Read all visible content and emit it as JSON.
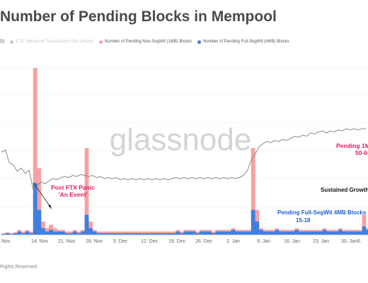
{
  "title": "Number of Pending Blocks in Mempool",
  "legend": [
    {
      "label": "D)",
      "color": "#888888",
      "faded": false,
      "dot": false
    },
    {
      "label": "ETC: Mempool Transactions Size (vByte)",
      "color": "#c8c8c8",
      "faded": true,
      "dot": true
    },
    {
      "label": "Number of Pending Non-SegWit (1MB) Blocks",
      "color": "#f7a1a1",
      "faded": false,
      "dot": true
    },
    {
      "label": "Number of Pending Full-SegWit (4MB) Blocks",
      "color": "#3f7fe0",
      "faded": false,
      "dot": true
    }
  ],
  "watermark": "glassnode",
  "footer": "Rights Reserved.",
  "colors": {
    "price": "#8a8a8a",
    "nonsegwit": "#f7a1a1",
    "segwit": "#3f7fe0",
    "annotation_pink": "#e6195b",
    "annotation_blue": "#1f5fd0"
  },
  "annotations": {
    "ftx_1": "Post FTX Panic",
    "ftx_2": "'An Event'",
    "pending_1m_1": "Pending 1M",
    "pending_1m_2": "50-6",
    "sustained": "Sustained Growth",
    "full_segwit_1": "Pending Full-SegWit 4MB Blocks",
    "full_segwit_2": "15-18"
  },
  "chart_data": {
    "type": "area",
    "x_ticks": [
      "Nov",
      "14. Nov",
      "21. Nov",
      "28. Nov",
      "5. Dec",
      "12. Dec",
      "19. Dec",
      "26. Dec",
      "2. Jan",
      "9. Jan",
      "16. Jan",
      "23. Jan",
      "30. Jan",
      "6."
    ],
    "y_range_blocks": [
      0,
      100
    ],
    "series": [
      {
        "name": "Number of Pending Non-SegWit (1MB) Blocks",
        "points": [
          [
            0,
            1
          ],
          [
            1,
            1.5
          ],
          [
            2,
            1
          ],
          [
            3,
            1.5
          ],
          [
            4,
            3
          ],
          [
            5,
            2
          ],
          [
            6,
            3
          ],
          [
            7,
            2
          ],
          [
            8,
            100
          ],
          [
            9,
            40
          ],
          [
            10,
            8
          ],
          [
            11,
            4
          ],
          [
            12,
            6
          ],
          [
            13,
            4
          ],
          [
            14,
            3
          ],
          [
            15,
            3
          ],
          [
            16,
            2
          ],
          [
            17,
            2
          ],
          [
            18,
            3
          ],
          [
            19,
            2
          ],
          [
            20,
            3
          ],
          [
            21,
            52
          ],
          [
            22,
            8
          ],
          [
            23,
            3
          ],
          [
            24,
            2
          ],
          [
            25,
            2
          ],
          [
            26,
            2
          ],
          [
            27,
            2
          ],
          [
            28,
            2
          ],
          [
            29,
            2
          ],
          [
            30,
            2
          ],
          [
            31,
            2
          ],
          [
            32,
            2
          ],
          [
            33,
            2
          ],
          [
            34,
            2
          ],
          [
            35,
            2
          ],
          [
            36,
            2
          ],
          [
            37,
            2
          ],
          [
            38,
            2
          ],
          [
            39,
            2
          ],
          [
            40,
            2
          ],
          [
            41,
            2
          ],
          [
            42,
            2
          ],
          [
            43,
            2
          ],
          [
            44,
            3
          ],
          [
            45,
            2
          ],
          [
            46,
            3
          ],
          [
            47,
            3
          ],
          [
            48,
            3
          ],
          [
            49,
            2
          ],
          [
            50,
            3
          ],
          [
            51,
            3
          ],
          [
            52,
            3
          ],
          [
            53,
            2
          ],
          [
            54,
            3
          ],
          [
            55,
            3
          ],
          [
            56,
            3
          ],
          [
            57,
            3
          ],
          [
            58,
            4
          ],
          [
            59,
            3
          ],
          [
            60,
            3
          ],
          [
            61,
            3
          ],
          [
            62,
            3
          ],
          [
            63,
            52
          ],
          [
            64,
            15
          ],
          [
            65,
            4
          ],
          [
            66,
            3
          ],
          [
            67,
            3
          ],
          [
            68,
            3
          ],
          [
            69,
            4
          ],
          [
            70,
            3
          ],
          [
            71,
            3
          ],
          [
            72,
            3
          ],
          [
            73,
            3
          ],
          [
            74,
            4
          ],
          [
            75,
            3
          ],
          [
            76,
            3
          ],
          [
            77,
            3
          ],
          [
            78,
            3
          ],
          [
            79,
            3
          ],
          [
            80,
            3
          ],
          [
            81,
            4
          ],
          [
            82,
            3
          ],
          [
            83,
            3
          ],
          [
            84,
            3
          ],
          [
            85,
            4
          ],
          [
            86,
            3
          ],
          [
            87,
            3
          ],
          [
            88,
            3
          ],
          [
            89,
            3
          ],
          [
            90,
            3
          ],
          [
            91,
            12
          ],
          [
            92,
            4
          ]
        ]
      },
      {
        "name": "Number of Pending Full-SegWit (4MB) Blocks",
        "points": [
          [
            0,
            0.5
          ],
          [
            1,
            1
          ],
          [
            2,
            0.5
          ],
          [
            3,
            1
          ],
          [
            4,
            2
          ],
          [
            5,
            1
          ],
          [
            6,
            2
          ],
          [
            7,
            1
          ],
          [
            8,
            31
          ],
          [
            9,
            15
          ],
          [
            10,
            4
          ],
          [
            11,
            2
          ],
          [
            12,
            3
          ],
          [
            13,
            2
          ],
          [
            14,
            2
          ],
          [
            15,
            2
          ],
          [
            16,
            1
          ],
          [
            17,
            1
          ],
          [
            18,
            2
          ],
          [
            19,
            1
          ],
          [
            20,
            2
          ],
          [
            21,
            12
          ],
          [
            22,
            4
          ],
          [
            23,
            2
          ],
          [
            24,
            1
          ],
          [
            25,
            1
          ],
          [
            26,
            1
          ],
          [
            27,
            1
          ],
          [
            28,
            1
          ],
          [
            29,
            1
          ],
          [
            30,
            1
          ],
          [
            31,
            1
          ],
          [
            32,
            1
          ],
          [
            33,
            1
          ],
          [
            34,
            1
          ],
          [
            35,
            1
          ],
          [
            36,
            1
          ],
          [
            37,
            1
          ],
          [
            38,
            1
          ],
          [
            39,
            1
          ],
          [
            40,
            1
          ],
          [
            41,
            1
          ],
          [
            42,
            1
          ],
          [
            43,
            1
          ],
          [
            44,
            2
          ],
          [
            45,
            1
          ],
          [
            46,
            2
          ],
          [
            47,
            2
          ],
          [
            48,
            2
          ],
          [
            49,
            1
          ],
          [
            50,
            2
          ],
          [
            51,
            2
          ],
          [
            52,
            2
          ],
          [
            53,
            1
          ],
          [
            54,
            2
          ],
          [
            55,
            2
          ],
          [
            56,
            2
          ],
          [
            57,
            2
          ],
          [
            58,
            3
          ],
          [
            59,
            2
          ],
          [
            60,
            2
          ],
          [
            61,
            2
          ],
          [
            62,
            2
          ],
          [
            63,
            15
          ],
          [
            64,
            8
          ],
          [
            65,
            3
          ],
          [
            66,
            2
          ],
          [
            67,
            2
          ],
          [
            68,
            2
          ],
          [
            69,
            3
          ],
          [
            70,
            2
          ],
          [
            71,
            2
          ],
          [
            72,
            2
          ],
          [
            73,
            2
          ],
          [
            74,
            3
          ],
          [
            75,
            2
          ],
          [
            76,
            2
          ],
          [
            77,
            2
          ],
          [
            78,
            2
          ],
          [
            79,
            2
          ],
          [
            80,
            2
          ],
          [
            81,
            3
          ],
          [
            82,
            2
          ],
          [
            83,
            2
          ],
          [
            84,
            2
          ],
          [
            85,
            3
          ],
          [
            86,
            2
          ],
          [
            87,
            2
          ],
          [
            88,
            2
          ],
          [
            89,
            2
          ],
          [
            90,
            2
          ],
          [
            91,
            5
          ],
          [
            92,
            3
          ]
        ]
      },
      {
        "name": "ETC: Mempool Transactions Size (vByte)",
        "relative": true,
        "points": [
          [
            0,
            0.7
          ],
          [
            1,
            0.72
          ],
          [
            2,
            0.6
          ],
          [
            3,
            0.58
          ],
          [
            4,
            0.52
          ],
          [
            5,
            0.55
          ],
          [
            6,
            0.5
          ],
          [
            7,
            0.53
          ],
          [
            8,
            0.35
          ],
          [
            9,
            0.38
          ],
          [
            10,
            0.42
          ],
          [
            11,
            0.4
          ],
          [
            12,
            0.43
          ],
          [
            13,
            0.45
          ],
          [
            14,
            0.44
          ],
          [
            15,
            0.46
          ],
          [
            16,
            0.47
          ],
          [
            17,
            0.46
          ],
          [
            18,
            0.48
          ],
          [
            19,
            0.47
          ],
          [
            20,
            0.49
          ],
          [
            21,
            0.48
          ],
          [
            22,
            0.47
          ],
          [
            23,
            0.48
          ],
          [
            24,
            0.46
          ],
          [
            25,
            0.47
          ],
          [
            26,
            0.45
          ],
          [
            27,
            0.46
          ],
          [
            28,
            0.45
          ],
          [
            29,
            0.46
          ],
          [
            30,
            0.44
          ],
          [
            31,
            0.45
          ],
          [
            32,
            0.44
          ],
          [
            33,
            0.45
          ],
          [
            34,
            0.44
          ],
          [
            35,
            0.45
          ],
          [
            36,
            0.44
          ],
          [
            37,
            0.45
          ],
          [
            38,
            0.44
          ],
          [
            39,
            0.45
          ],
          [
            40,
            0.44
          ],
          [
            41,
            0.45
          ],
          [
            42,
            0.44
          ],
          [
            43,
            0.45
          ],
          [
            44,
            0.46
          ],
          [
            45,
            0.45
          ],
          [
            46,
            0.46
          ],
          [
            47,
            0.45
          ],
          [
            48,
            0.46
          ],
          [
            49,
            0.45
          ],
          [
            50,
            0.46
          ],
          [
            51,
            0.45
          ],
          [
            52,
            0.46
          ],
          [
            53,
            0.45
          ],
          [
            54,
            0.46
          ],
          [
            55,
            0.45
          ],
          [
            56,
            0.46
          ],
          [
            57,
            0.45
          ],
          [
            58,
            0.46
          ],
          [
            59,
            0.45
          ],
          [
            60,
            0.46
          ],
          [
            61,
            0.48
          ],
          [
            62,
            0.52
          ],
          [
            63,
            0.62
          ],
          [
            64,
            0.68
          ],
          [
            65,
            0.75
          ],
          [
            66,
            0.78
          ],
          [
            67,
            0.8
          ],
          [
            68,
            0.79
          ],
          [
            69,
            0.81
          ],
          [
            70,
            0.8
          ],
          [
            71,
            0.82
          ],
          [
            72,
            0.81
          ],
          [
            73,
            0.83
          ],
          [
            74,
            0.85
          ],
          [
            75,
            0.84
          ],
          [
            76,
            0.86
          ],
          [
            77,
            0.85
          ],
          [
            78,
            0.88
          ],
          [
            79,
            0.87
          ],
          [
            80,
            0.89
          ],
          [
            81,
            0.9
          ],
          [
            82,
            0.88
          ],
          [
            83,
            0.9
          ],
          [
            84,
            0.89
          ],
          [
            85,
            0.91
          ],
          [
            86,
            0.9
          ],
          [
            87,
            0.92
          ],
          [
            88,
            0.91
          ],
          [
            89,
            0.92
          ],
          [
            90,
            0.91
          ],
          [
            91,
            0.92
          ],
          [
            92,
            0.92
          ]
        ]
      }
    ],
    "grid": true,
    "legend_position": "top-left"
  }
}
